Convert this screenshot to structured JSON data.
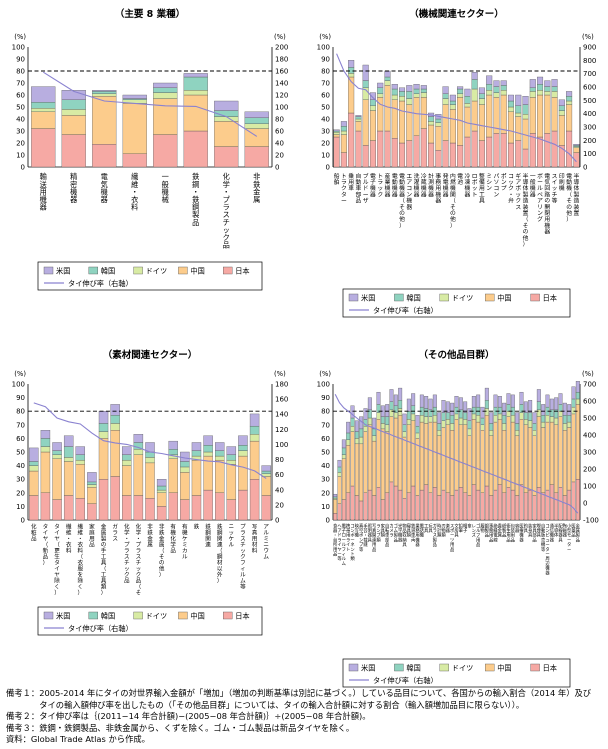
{
  "series_colors": {
    "us": "#b8aee0",
    "korea": "#8fd3c0",
    "germany": "#d8eba4",
    "china": "#fccc8c",
    "japan": "#f6a9a4",
    "thai_growth": "#8a82d0"
  },
  "legend": {
    "us": "米国",
    "korea": "韓国",
    "germany": "ドイツ",
    "china": "中国",
    "japan": "日本",
    "thai_growth": "タイ伸び率（右軸）"
  },
  "chart_data": [
    {
      "type": "bar",
      "title": "（主要 8 業種）",
      "stacked": true,
      "left_unit": "(%)",
      "right_unit": "(%)",
      "ylim": [
        0,
        100
      ],
      "y2lim": [
        0,
        200
      ],
      "yticks": [
        "0",
        "10",
        "20",
        "30",
        "40",
        "50",
        "60",
        "70",
        "80",
        "90",
        "100"
      ],
      "y2ticks": [
        "0",
        "20",
        "40",
        "60",
        "80",
        "100",
        "120",
        "140",
        "160",
        "180",
        "200"
      ],
      "reference_line": 80,
      "categories": [
        "輸送用機器",
        "精密機器",
        "電気機器",
        "繊維・衣料",
        "一般機械",
        "鉄鋼・鉄鋼製品",
        "化学・プラスチック品",
        "非鉄金属"
      ],
      "series": [
        {
          "name": "日本",
          "key": "japan",
          "values": [
            32,
            27,
            19,
            11,
            27,
            30,
            17,
            17
          ]
        },
        {
          "name": "中国",
          "key": "china",
          "values": [
            14,
            16,
            40,
            42,
            30,
            30,
            21,
            15
          ]
        },
        {
          "name": "ドイツ",
          "key": "germany",
          "values": [
            3,
            5,
            2,
            3,
            5,
            4,
            4,
            4
          ]
        },
        {
          "name": "韓国",
          "key": "korea",
          "values": [
            5,
            8,
            2,
            1,
            4,
            11,
            5,
            5
          ]
        },
        {
          "name": "米国",
          "key": "us",
          "values": [
            13,
            8,
            1,
            3,
            4,
            3,
            8,
            5
          ]
        }
      ],
      "thai_growth": [
        158,
        126,
        110,
        106,
        102,
        101,
        84,
        51
      ]
    },
    {
      "type": "bar",
      "title": "（機械関連セクター）",
      "stacked": true,
      "left_unit": "(%)",
      "right_unit": "(%)",
      "ylim": [
        0,
        100
      ],
      "y2lim": [
        0,
        900
      ],
      "yticks": [
        "0",
        "10",
        "20",
        "30",
        "40",
        "50",
        "60",
        "70",
        "80",
        "90",
        "100"
      ],
      "y2ticks": [
        "0",
        "100",
        "200",
        "300",
        "400",
        "500",
        "600",
        "700",
        "800",
        "900"
      ],
      "reference_line": 80,
      "categories": [
        "船舶",
        "トラクター",
        "乗用車",
        "自動車部品",
        "ブルドーザ",
        "電子機器",
        "トラック",
        "産業機器",
        "電動機器",
        "電動機器（その他）",
        "エアコン機器",
        "洗濯機器",
        "冷蔵機器",
        "計測機器",
        "事務用機器",
        "発電機器",
        "内燃機関（その他）",
        "電池",
        "冷凍機器",
        "ロボット",
        "整備用工具",
        "ミシン",
        "パソコン",
        "ポンプ",
        "コック・弁",
        "ギアボックス",
        "半導体製造装置（その他）",
        "一般機器",
        "ボールベアリング",
        "電気回路の開閉用機器",
        "スイッチ等",
        "印刷機",
        "電動機（その他）",
        "半導体製造装置"
      ],
      "series": [
        {
          "name": "日本",
          "key": "japan",
          "values": [
            25,
            12,
            45,
            30,
            18,
            22,
            30,
            30,
            24,
            20,
            22,
            26,
            32,
            20,
            14,
            22,
            20,
            18,
            25,
            30,
            22,
            25,
            28,
            28,
            20,
            22,
            15,
            28,
            25,
            28,
            30,
            18,
            30,
            12
          ]
        },
        {
          "name": "中国",
          "key": "china",
          "values": [
            2,
            15,
            30,
            8,
            38,
            25,
            28,
            38,
            32,
            35,
            30,
            32,
            26,
            15,
            20,
            30,
            28,
            40,
            25,
            25,
            30,
            35,
            30,
            32,
            26,
            20,
            25,
            30,
            35,
            32,
            28,
            25,
            22,
            4
          ]
        },
        {
          "name": "ドイツ",
          "key": "germany",
          "values": [
            2,
            3,
            3,
            2,
            10,
            4,
            3,
            4,
            4,
            4,
            5,
            3,
            4,
            3,
            3,
            5,
            4,
            3,
            3,
            10,
            5,
            4,
            4,
            4,
            4,
            3,
            4,
            5,
            4,
            3,
            5,
            4,
            3,
            1
          ]
        },
        {
          "name": "韓国",
          "key": "korea",
          "values": [
            1,
            4,
            5,
            2,
            6,
            5,
            5,
            3,
            5,
            4,
            6,
            4,
            3,
            4,
            3,
            4,
            3,
            4,
            6,
            8,
            4,
            5,
            5,
            4,
            5,
            6,
            8,
            3,
            5,
            4,
            4,
            4,
            4,
            1
          ]
        },
        {
          "name": "米国",
          "key": "us",
          "values": [
            1,
            4,
            6,
            1,
            13,
            6,
            4,
            5,
            4,
            3,
            5,
            4,
            3,
            3,
            4,
            6,
            5,
            2,
            6,
            6,
            5,
            7,
            5,
            4,
            5,
            9,
            7,
            7,
            6,
            5,
            6,
            5,
            4,
            1
          ]
        }
      ],
      "thai_growth": [
        850,
        720,
        640,
        590,
        580,
        520,
        470,
        450,
        440,
        420,
        410,
        400,
        395,
        390,
        380,
        370,
        360,
        350,
        330,
        320,
        310,
        300,
        290,
        280,
        270,
        255,
        240,
        225,
        210,
        190,
        170,
        140,
        100,
        40
      ]
    },
    {
      "type": "bar",
      "title": "（素材関連セクター）",
      "stacked": true,
      "left_unit": "(%)",
      "right_unit": "(%)",
      "ylim": [
        0,
        100
      ],
      "y2lim": [
        0,
        180
      ],
      "yticks": [
        "0",
        "10",
        "20",
        "30",
        "40",
        "50",
        "60",
        "70",
        "80",
        "90",
        "100"
      ],
      "y2ticks": [
        "0",
        "20",
        "40",
        "60",
        "80",
        "100",
        "120",
        "140",
        "160",
        "180"
      ],
      "reference_line": 80,
      "categories": [
        "化粧品",
        "タイヤ（新品）",
        "タイヤ（更生タイヤ除く）",
        "繊維・衣料",
        "繊維・衣料（衣服を除く）",
        "家庭用品",
        "金属製の手工具（工具類）",
        "ガラス",
        "化学・プラスチック品",
        "化学・プラスチック品（その他）",
        "非鉄金属",
        "非鉄金属（その他）",
        "有機化学品",
        "有機ケミカル",
        "鉄",
        "鉄鋼関連",
        "鉄鋼関連（鋼材以外）",
        "ニッケル",
        "プラスチックフィルム等",
        "写真用材料",
        "アルミニウム"
      ],
      "series": [
        {
          "name": "日本",
          "key": "japan",
          "values": [
            18,
            20,
            15,
            18,
            16,
            12,
            30,
            32,
            18,
            18,
            16,
            10,
            20,
            15,
            18,
            22,
            20,
            15,
            22,
            30,
            18
          ]
        },
        {
          "name": "中国",
          "key": "china",
          "values": [
            18,
            30,
            30,
            25,
            25,
            12,
            30,
            34,
            22,
            30,
            26,
            10,
            25,
            20,
            26,
            25,
            24,
            26,
            25,
            28,
            14
          ]
        },
        {
          "name": "ドイツ",
          "key": "germany",
          "values": [
            4,
            4,
            3,
            3,
            3,
            2,
            5,
            5,
            4,
            4,
            4,
            2,
            3,
            4,
            3,
            3,
            3,
            3,
            4,
            5,
            2
          ]
        },
        {
          "name": "韓国",
          "key": "korea",
          "values": [
            3,
            6,
            3,
            8,
            4,
            2,
            6,
            6,
            4,
            5,
            4,
            3,
            4,
            4,
            4,
            5,
            4,
            4,
            4,
            6,
            2
          ]
        },
        {
          "name": "米国",
          "key": "us",
          "values": [
            10,
            6,
            6,
            8,
            6,
            7,
            9,
            8,
            6,
            6,
            7,
            5,
            6,
            7,
            6,
            7,
            6,
            6,
            7,
            9,
            4
          ]
        }
      ],
      "thai_growth": [
        155,
        150,
        135,
        130,
        127,
        115,
        105,
        102,
        100,
        96,
        90,
        88,
        85,
        82,
        80,
        78,
        77,
        73,
        70,
        65,
        55
      ]
    },
    {
      "type": "bar",
      "title": "（その他品目群）",
      "stacked": true,
      "left_unit": "(%)",
      "right_unit": "(%)",
      "ylim": [
        0,
        100
      ],
      "y2lim": [
        -100,
        700
      ],
      "yticks": [
        "0",
        "10",
        "20",
        "30",
        "40",
        "50",
        "60",
        "70",
        "80",
        "90",
        "100"
      ],
      "y2ticks": [
        "-100",
        "0",
        "100",
        "200",
        "300",
        "400",
        "500",
        "600",
        "700"
      ],
      "reference_line": 80,
      "categories": [
        "食器・台所用品",
        "ヘアドライヤー等",
        "電子ロールフィルム",
        "携帯用ライト",
        "コンポーネント類",
        "映写機",
        "真空ポンプ等",
        "手芸・裁縫",
        "照明器具",
        "写真関連用品",
        "ランプ類",
        "家具類",
        "自転車部品",
        "カメラ",
        "ゴム製品",
        "光学機器",
        "物品収納具",
        "寝具類",
        "鉄道車両",
        "業務用機器",
        "電話機",
        "工具",
        "玩具",
        "ガラス製品",
        "時計類",
        "刃物類",
        "楽器",
        "スポーツ用品",
        "文房具",
        "鉛筆",
        "帽子",
        "傘",
        "レンズ",
        "ゴルフ用品",
        "履物",
        "銀製品",
        "事務用品",
        "絶縁電線",
        "貴金属",
        "紙製品",
        "衛生用品",
        "包装用品",
        "容器",
        "医療機器",
        "釣具",
        "装身具",
        "家具部品",
        "喫煙具",
        "自動販売機等",
        "コンピューター周辺機器",
        "通信機器",
        "半導体",
        "配線器具",
        "陶磁器",
        "小型モーター",
        "医薬品",
        "金属製品"
      ],
      "series": [
        {
          "name": "日本",
          "key": "japan",
          "values": [
            5,
            12,
            15,
            20,
            25,
            18,
            14,
            20,
            22,
            18,
            24,
            15,
            20,
            28,
            25,
            22,
            16,
            20,
            25,
            18,
            22,
            26,
            20,
            24,
            18,
            22,
            20,
            18,
            22,
            24,
            20,
            18,
            26,
            22,
            20,
            25,
            18,
            22,
            26,
            20,
            24,
            22,
            18,
            26,
            20,
            22,
            18,
            24,
            20,
            22,
            26,
            20,
            24,
            18,
            22,
            28,
            30
          ]
        },
        {
          "name": "中国",
          "key": "china",
          "values": [
            10,
            20,
            30,
            35,
            40,
            38,
            42,
            45,
            48,
            40,
            50,
            52,
            45,
            48,
            50,
            55,
            45,
            50,
            48,
            42,
            50,
            45,
            52,
            48,
            44,
            46,
            50,
            48,
            52,
            46,
            50,
            44,
            48,
            50,
            46,
            52,
            44,
            50,
            48,
            46,
            52,
            50,
            44,
            48,
            50,
            46,
            44,
            52,
            48,
            50,
            46,
            50,
            52,
            48,
            46,
            50,
            55
          ]
        },
        {
          "name": "ドイツ",
          "key": "germany",
          "values": [
            1,
            3,
            3,
            4,
            4,
            4,
            5,
            4,
            5,
            4,
            5,
            4,
            5,
            5,
            4,
            5,
            4,
            4,
            5,
            4,
            5,
            5,
            4,
            5,
            4,
            5,
            4,
            5,
            4,
            5,
            4,
            5,
            4,
            5,
            4,
            5,
            4,
            5,
            4,
            5,
            4,
            5,
            4,
            5,
            4,
            5,
            4,
            5,
            4,
            5,
            4,
            5,
            4,
            5,
            4,
            5,
            4
          ]
        },
        {
          "name": "韓国",
          "key": "korea",
          "values": [
            1,
            4,
            5,
            5,
            6,
            5,
            6,
            5,
            6,
            5,
            6,
            5,
            6,
            6,
            5,
            6,
            5,
            6,
            6,
            5,
            6,
            6,
            5,
            6,
            5,
            6,
            5,
            6,
            5,
            6,
            5,
            6,
            5,
            6,
            5,
            6,
            5,
            6,
            5,
            6,
            5,
            6,
            5,
            6,
            5,
            6,
            5,
            6,
            5,
            6,
            5,
            6,
            5,
            6,
            5,
            6,
            5
          ]
        },
        {
          "name": "米国",
          "key": "us",
          "values": [
            2,
            5,
            6,
            8,
            9,
            8,
            9,
            8,
            9,
            8,
            9,
            8,
            9,
            9,
            8,
            9,
            8,
            9,
            9,
            8,
            9,
            9,
            8,
            9,
            8,
            9,
            8,
            9,
            8,
            9,
            8,
            9,
            8,
            9,
            8,
            9,
            8,
            9,
            8,
            9,
            8,
            9,
            8,
            9,
            8,
            9,
            8,
            9,
            8,
            9,
            8,
            9,
            8,
            9,
            8,
            9,
            8
          ]
        }
      ],
      "thai_growth": [
        640,
        590,
        560,
        540,
        520,
        500,
        480,
        460,
        450,
        440,
        430,
        420,
        410,
        400,
        390,
        380,
        370,
        360,
        350,
        340,
        330,
        320,
        310,
        300,
        290,
        280,
        270,
        260,
        250,
        240,
        230,
        220,
        210,
        200,
        190,
        180,
        170,
        160,
        150,
        140,
        130,
        120,
        110,
        100,
        90,
        80,
        70,
        60,
        50,
        40,
        30,
        20,
        10,
        0,
        -10,
        -30,
        -60
      ]
    }
  ],
  "notes": [
    "備考１：2005-2014 年にタイの対世界輸入金額が「増加」（増加の判断基準は別記に基づく。）している品目について、各国からの輸入割合（2014 年）及び",
    "　　　　タイの輸入額伸び率を出したもの（「その他品目群」については、タイの輸入合計額に対する割合（輸入額増加品目に限らない））。",
    "備考２：タイ伸び率は｛(2011−14 年合計額)−(2005−08 年合計額)｝÷(2005−08 年合計額)。",
    "備考３：鉄鋼・鉄鋼製品、非鉄金属から、くずを除く。ゴム・ゴム製品は新品タイヤを除く。",
    "資料：Global Trade Atlas から作成。"
  ]
}
